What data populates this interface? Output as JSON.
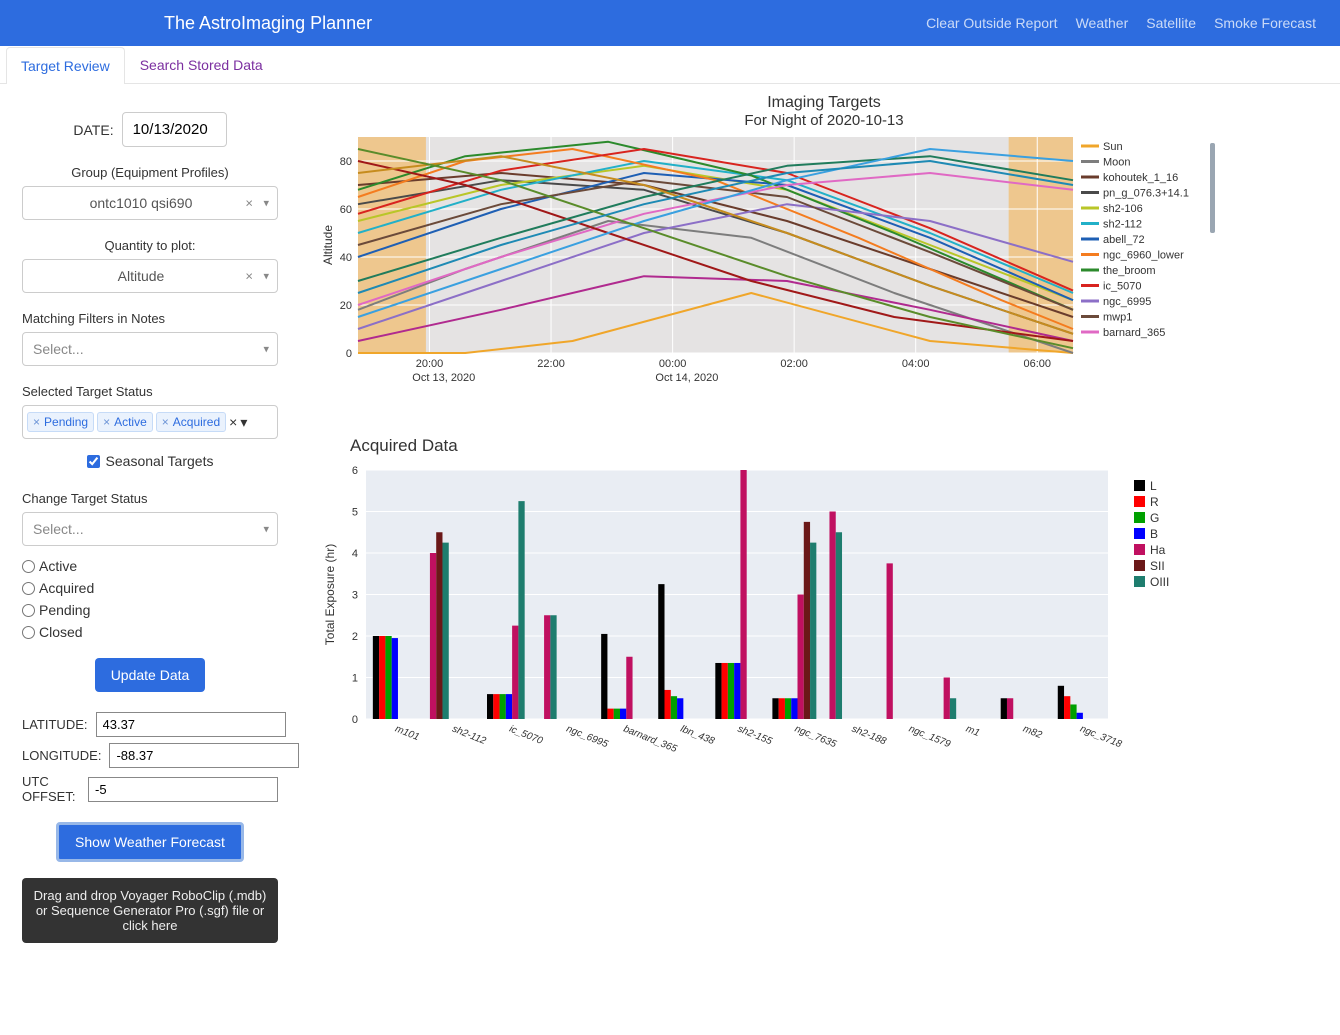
{
  "header": {
    "title": "The AstroImaging Planner",
    "nav": [
      "Clear Outside Report",
      "Weather",
      "Satellite",
      "Smoke Forecast"
    ]
  },
  "tabs": {
    "active": "Target Review",
    "inactive": "Search Stored Data"
  },
  "sidebar": {
    "date_label": "DATE:",
    "date_value": "10/13/2020",
    "group_label": "Group (Equipment Profiles)",
    "group_value": "ontc1010 qsi690",
    "quantity_label": "Quantity to plot:",
    "quantity_value": "Altitude",
    "filters_label": "Matching Filters in Notes",
    "filters_placeholder": "Select...",
    "status_label": "Selected Target Status",
    "status_tags": [
      "Pending",
      "Active",
      "Acquired"
    ],
    "seasonal_label": "Seasonal Targets",
    "seasonal_checked": true,
    "change_status_label": "Change Target Status",
    "change_status_placeholder": "Select...",
    "status_radios": [
      "Active",
      "Acquired",
      "Pending",
      "Closed"
    ],
    "update_btn": "Update Data",
    "lat_label": "LATITUDE:",
    "lat_value": "43.37",
    "lon_label": "LONGITUDE:",
    "lon_value": "-88.37",
    "utc_label": "UTC OFFSET:",
    "utc_value": "-5",
    "weather_btn": "Show Weather Forecast",
    "dropzone": "Drag and drop Voyager RoboClip (.mdb) or Sequence Generator Pro (.sgf) file or click here"
  },
  "line_chart": {
    "title": "Imaging Targets",
    "subtitle": "For Night of 2020-10-13",
    "ylabel": "Altitude",
    "ylim": [
      0,
      90
    ],
    "ytick_step": 20,
    "plot_bg": "#e5e3e3",
    "grid_color": "#ffffff",
    "shade_color": "#f0c27f",
    "shade_ranges_x": [
      [
        0,
        0.095
      ],
      [
        0.91,
        1.0
      ]
    ],
    "x_ticks": [
      "20:00",
      "22:00",
      "00:00",
      "02:00",
      "04:00",
      "06:00"
    ],
    "x_tick_pos": [
      0.1,
      0.27,
      0.44,
      0.61,
      0.78,
      0.95
    ],
    "x_sub_labels": [
      {
        "text": "Oct 13, 2020",
        "pos": 0.12
      },
      {
        "text": "Oct 14, 2020",
        "pos": 0.46
      }
    ],
    "legend": [
      {
        "label": "Sun",
        "color": "#f0a62a"
      },
      {
        "label": "Moon",
        "color": "#7d7d7d"
      },
      {
        "label": "kohoutek_1_16",
        "color": "#6a3c2c"
      },
      {
        "label": "pn_g_076.3+14.1",
        "color": "#4a4a4a"
      },
      {
        "label": "sh2-106",
        "color": "#b9c628"
      },
      {
        "label": "sh2-112",
        "color": "#22b0c8"
      },
      {
        "label": "abell_72",
        "color": "#1e5fb4"
      },
      {
        "label": "ngc_6960_lower",
        "color": "#f47c1f"
      },
      {
        "label": "the_broom",
        "color": "#2c8a2c"
      },
      {
        "label": "ic_5070",
        "color": "#d8241f"
      },
      {
        "label": "ngc_6995",
        "color": "#8c6fc7"
      },
      {
        "label": "mwp1",
        "color": "#6b4a3a"
      },
      {
        "label": "barnard_365",
        "color": "#e069c4"
      }
    ],
    "series": [
      {
        "color": "#f0a62a",
        "pts": [
          [
            0,
            -5
          ],
          [
            0.15,
            -5
          ],
          [
            0.3,
            5
          ],
          [
            0.55,
            25
          ],
          [
            0.8,
            5
          ],
          [
            1,
            -5
          ]
        ]
      },
      {
        "color": "#7d7d7d",
        "pts": [
          [
            0,
            18
          ],
          [
            0.15,
            35
          ],
          [
            0.35,
            55
          ],
          [
            0.55,
            48
          ],
          [
            0.75,
            25
          ],
          [
            1,
            0
          ]
        ]
      },
      {
        "color": "#6a3c2c",
        "pts": [
          [
            0,
            70
          ],
          [
            0.2,
            75
          ],
          [
            0.4,
            70
          ],
          [
            0.6,
            55
          ],
          [
            0.8,
            35
          ],
          [
            1,
            15
          ]
        ]
      },
      {
        "color": "#4a4a4a",
        "pts": [
          [
            0,
            62
          ],
          [
            0.2,
            72
          ],
          [
            0.4,
            68
          ],
          [
            0.6,
            50
          ],
          [
            0.8,
            28
          ],
          [
            1,
            8
          ]
        ]
      },
      {
        "color": "#b9c628",
        "pts": [
          [
            0,
            55
          ],
          [
            0.2,
            70
          ],
          [
            0.4,
            78
          ],
          [
            0.6,
            68
          ],
          [
            0.8,
            45
          ],
          [
            1,
            22
          ]
        ]
      },
      {
        "color": "#22b0c8",
        "pts": [
          [
            0,
            50
          ],
          [
            0.2,
            68
          ],
          [
            0.4,
            80
          ],
          [
            0.6,
            72
          ],
          [
            0.8,
            50
          ],
          [
            1,
            25
          ]
        ]
      },
      {
        "color": "#1e5fb4",
        "pts": [
          [
            0,
            40
          ],
          [
            0.2,
            60
          ],
          [
            0.4,
            75
          ],
          [
            0.6,
            70
          ],
          [
            0.8,
            48
          ],
          [
            1,
            22
          ]
        ]
      },
      {
        "color": "#f47c1f",
        "pts": [
          [
            0,
            65
          ],
          [
            0.15,
            80
          ],
          [
            0.3,
            85
          ],
          [
            0.5,
            72
          ],
          [
            0.7,
            48
          ],
          [
            0.9,
            22
          ],
          [
            1,
            10
          ]
        ]
      },
      {
        "color": "#2c8a2c",
        "pts": [
          [
            0,
            68
          ],
          [
            0.15,
            82
          ],
          [
            0.35,
            88
          ],
          [
            0.55,
            74
          ],
          [
            0.75,
            50
          ],
          [
            1,
            18
          ]
        ]
      },
      {
        "color": "#d8241f",
        "pts": [
          [
            0,
            58
          ],
          [
            0.2,
            76
          ],
          [
            0.4,
            85
          ],
          [
            0.6,
            75
          ],
          [
            0.8,
            52
          ],
          [
            1,
            26
          ]
        ]
      },
      {
        "color": "#8c6fc7",
        "pts": [
          [
            0,
            10
          ],
          [
            0.2,
            30
          ],
          [
            0.4,
            50
          ],
          [
            0.6,
            62
          ],
          [
            0.8,
            55
          ],
          [
            1,
            38
          ]
        ]
      },
      {
        "color": "#6b4a3a",
        "pts": [
          [
            0,
            45
          ],
          [
            0.2,
            62
          ],
          [
            0.4,
            72
          ],
          [
            0.6,
            65
          ],
          [
            0.8,
            42
          ],
          [
            1,
            18
          ]
        ]
      },
      {
        "color": "#e069c4",
        "pts": [
          [
            0,
            20
          ],
          [
            0.2,
            40
          ],
          [
            0.4,
            58
          ],
          [
            0.6,
            70
          ],
          [
            0.8,
            75
          ],
          [
            1,
            68
          ]
        ]
      },
      {
        "color": "#b02a8f",
        "pts": [
          [
            0,
            5
          ],
          [
            0.2,
            18
          ],
          [
            0.4,
            32
          ],
          [
            0.6,
            30
          ],
          [
            0.8,
            18
          ],
          [
            1,
            5
          ]
        ]
      },
      {
        "color": "#a01818",
        "pts": [
          [
            0,
            80
          ],
          [
            0.15,
            70
          ],
          [
            0.35,
            50
          ],
          [
            0.55,
            30
          ],
          [
            0.75,
            15
          ],
          [
            1,
            5
          ]
        ]
      },
      {
        "color": "#207c5c",
        "pts": [
          [
            0,
            30
          ],
          [
            0.2,
            48
          ],
          [
            0.4,
            65
          ],
          [
            0.6,
            78
          ],
          [
            0.8,
            82
          ],
          [
            1,
            72
          ]
        ]
      },
      {
        "color": "#3aa0e0",
        "pts": [
          [
            0,
            15
          ],
          [
            0.2,
            35
          ],
          [
            0.4,
            55
          ],
          [
            0.6,
            72
          ],
          [
            0.8,
            85
          ],
          [
            1,
            80
          ]
        ]
      },
      {
        "color": "#c68c1e",
        "pts": [
          [
            0,
            75
          ],
          [
            0.2,
            82
          ],
          [
            0.4,
            70
          ],
          [
            0.6,
            50
          ],
          [
            0.8,
            28
          ],
          [
            1,
            8
          ]
        ]
      },
      {
        "color": "#5a8c2a",
        "pts": [
          [
            0,
            85
          ],
          [
            0.2,
            72
          ],
          [
            0.4,
            52
          ],
          [
            0.6,
            32
          ],
          [
            0.8,
            15
          ],
          [
            1,
            2
          ]
        ]
      },
      {
        "color": "#1e8ab4",
        "pts": [
          [
            0,
            25
          ],
          [
            0.2,
            45
          ],
          [
            0.4,
            62
          ],
          [
            0.6,
            75
          ],
          [
            0.8,
            80
          ],
          [
            1,
            70
          ]
        ]
      }
    ]
  },
  "bar_chart": {
    "title": "Acquired Data",
    "ylabel": "Total Exposure (hr)",
    "ylim": [
      0,
      6
    ],
    "ytick_step": 1,
    "plot_bg": "#e9edf3",
    "grid_color": "#ffffff",
    "filters": [
      {
        "key": "L",
        "color": "#000000"
      },
      {
        "key": "R",
        "color": "#ff0000"
      },
      {
        "key": "G",
        "color": "#00a000"
      },
      {
        "key": "B",
        "color": "#0000ff"
      },
      {
        "key": "Ha",
        "color": "#c01060"
      },
      {
        "key": "SII",
        "color": "#6b1818"
      },
      {
        "key": "OIII",
        "color": "#1e7d6e"
      }
    ],
    "targets": [
      {
        "name": "m101",
        "vals": {
          "L": 2.0,
          "R": 2.0,
          "G": 2.0,
          "B": 1.95
        }
      },
      {
        "name": "sh2-112",
        "vals": {
          "Ha": 4.0,
          "SII": 4.5,
          "OIII": 4.25
        }
      },
      {
        "name": "ic_5070",
        "vals": {
          "L": 0.6,
          "R": 0.6,
          "G": 0.6,
          "B": 0.6,
          "Ha": 2.25,
          "OIII": 5.25
        }
      },
      {
        "name": "ngc_6995",
        "vals": {
          "Ha": 2.5,
          "OIII": 2.5
        }
      },
      {
        "name": "barnard_365",
        "vals": {
          "L": 2.05,
          "R": 0.25,
          "G": 0.25,
          "B": 0.25,
          "Ha": 1.5
        }
      },
      {
        "name": "lbn_438",
        "vals": {
          "L": 3.25,
          "R": 0.7,
          "G": 0.55,
          "B": 0.5
        }
      },
      {
        "name": "sh2-155",
        "vals": {
          "L": 1.35,
          "R": 1.35,
          "G": 1.35,
          "B": 1.35,
          "Ha": 6.0
        }
      },
      {
        "name": "ngc_7635",
        "vals": {
          "L": 0.5,
          "R": 0.5,
          "G": 0.5,
          "B": 0.5,
          "Ha": 3.0,
          "SII": 4.75,
          "OIII": 4.25
        }
      },
      {
        "name": "sh2-188",
        "vals": {
          "Ha": 5.0,
          "OIII": 4.5
        }
      },
      {
        "name": "ngc_1579",
        "vals": {
          "Ha": 3.75
        }
      },
      {
        "name": "m1",
        "vals": {
          "Ha": 1.0,
          "OIII": 0.5
        }
      },
      {
        "name": "m82",
        "vals": {
          "L": 0.5,
          "Ha": 0.5
        }
      },
      {
        "name": "ngc_3718",
        "vals": {
          "L": 0.8,
          "R": 0.55,
          "G": 0.35,
          "B": 0.15
        }
      }
    ]
  }
}
